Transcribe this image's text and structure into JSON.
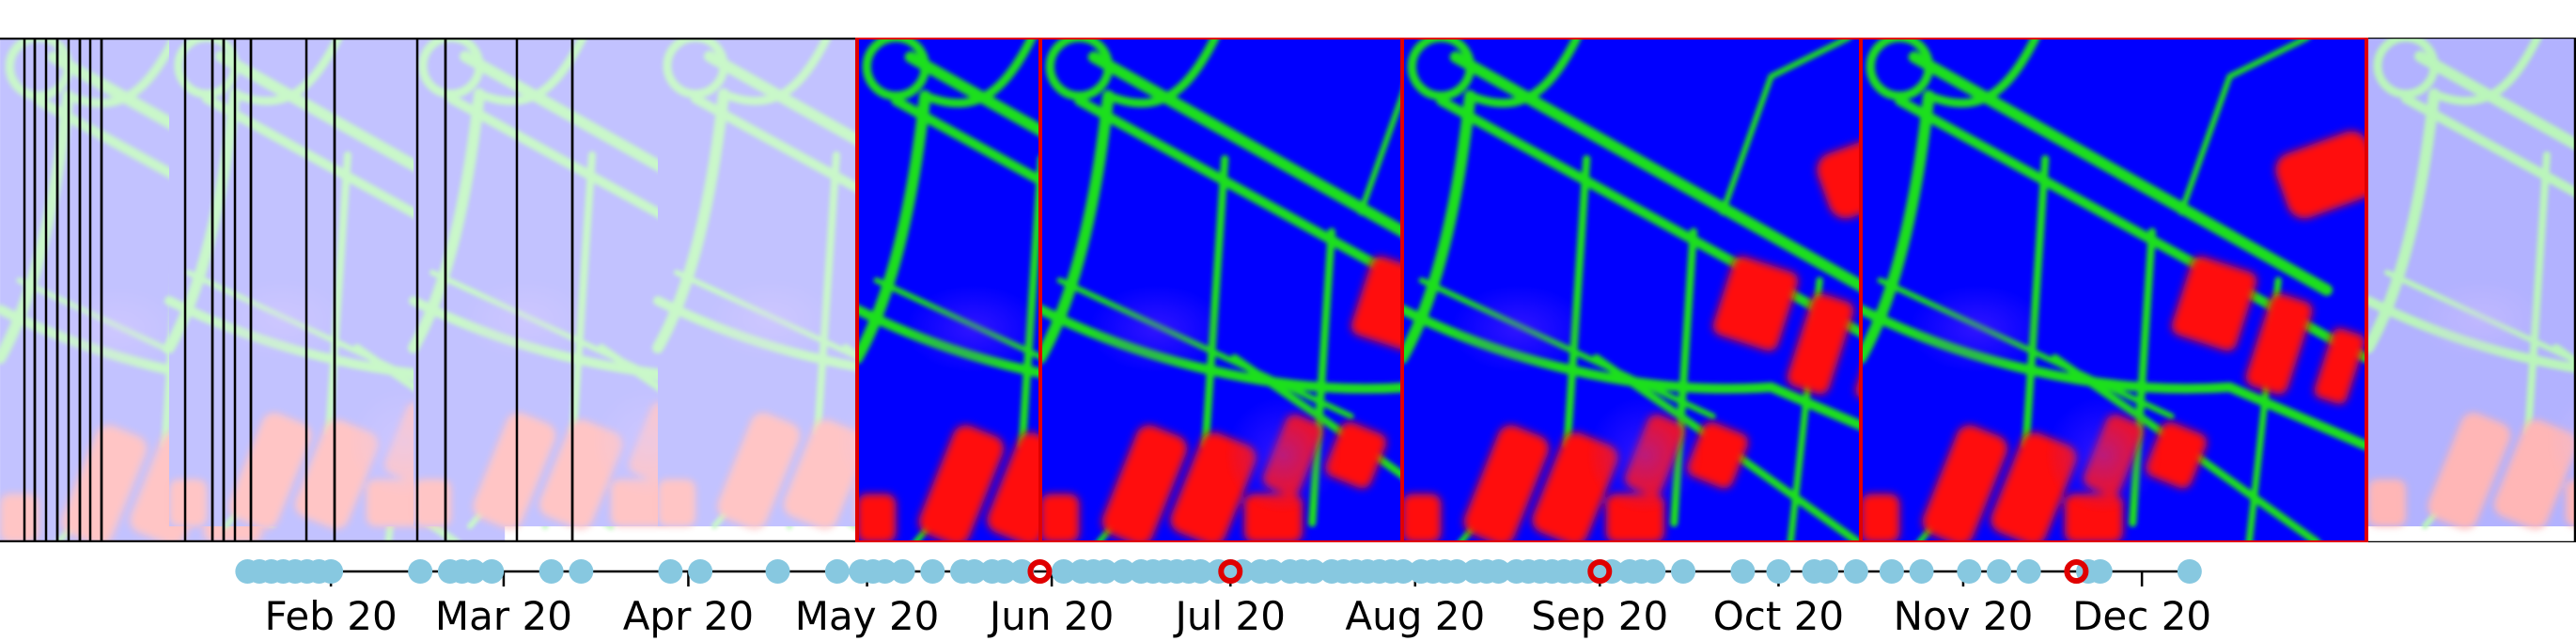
{
  "chart_data": {
    "type": "scatter",
    "title": "",
    "xlabel": "",
    "ylabel": "",
    "x_axis": {
      "scale": "time",
      "range": [
        "2020-01-14",
        "2021-01-08"
      ],
      "ticks": [
        {
          "date": "2020-02-01",
          "label": "Feb 20"
        },
        {
          "date": "2020-03-01",
          "label": "Mar 20"
        },
        {
          "date": "2020-04-01",
          "label": "Apr 20"
        },
        {
          "date": "2020-05-01",
          "label": "May 20"
        },
        {
          "date": "2020-06-01",
          "label": "Jun 20"
        },
        {
          "date": "2020-07-01",
          "label": "Jul 20"
        },
        {
          "date": "2020-08-01",
          "label": "Aug 20"
        },
        {
          "date": "2020-09-01",
          "label": "Sep 20"
        },
        {
          "date": "2020-10-01",
          "label": "Oct 20"
        },
        {
          "date": "2020-11-01",
          "label": "Nov 20"
        },
        {
          "date": "2020-12-01",
          "label": "Dec 20"
        }
      ]
    },
    "grid": false,
    "series": [
      {
        "marker": "filled-circle",
        "color": "#87c8e0",
        "x": [
          "2020-01-18",
          "2020-01-20",
          "2020-01-22",
          "2020-01-24",
          "2020-01-26",
          "2020-01-28",
          "2020-01-30",
          "2020-02-01",
          "2020-02-16",
          "2020-02-21",
          "2020-02-23",
          "2020-02-25",
          "2020-02-28",
          "2020-03-09",
          "2020-03-14",
          "2020-03-29",
          "2020-04-03",
          "2020-04-16",
          "2020-04-26",
          "2020-04-30",
          "2020-05-02",
          "2020-05-04",
          "2020-05-07",
          "2020-05-12",
          "2020-05-17",
          "2020-05-19",
          "2020-05-22",
          "2020-05-24",
          "2020-05-27",
          "2020-06-03",
          "2020-06-06",
          "2020-06-08",
          "2020-06-10",
          "2020-06-13",
          "2020-06-16",
          "2020-06-18",
          "2020-06-20",
          "2020-06-22",
          "2020-06-24",
          "2020-06-26",
          "2020-06-29",
          "2020-07-01",
          "2020-07-03",
          "2020-07-06",
          "2020-07-08",
          "2020-07-11",
          "2020-07-13",
          "2020-07-15",
          "2020-07-18",
          "2020-07-20",
          "2020-07-22",
          "2020-07-24",
          "2020-07-26",
          "2020-07-28",
          "2020-07-30",
          "2020-08-02",
          "2020-08-04",
          "2020-08-06",
          "2020-08-08",
          "2020-08-11",
          "2020-08-13",
          "2020-08-15",
          "2020-08-18",
          "2020-08-20",
          "2020-08-22",
          "2020-08-24",
          "2020-08-26",
          "2020-08-28",
          "2020-08-30",
          "2020-09-01",
          "2020-09-03",
          "2020-09-06",
          "2020-09-08",
          "2020-09-10",
          "2020-09-15",
          "2020-09-25",
          "2020-10-01",
          "2020-10-07",
          "2020-10-09",
          "2020-10-14",
          "2020-10-20",
          "2020-10-25",
          "2020-11-02",
          "2020-11-07",
          "2020-11-12",
          "2020-11-22",
          "2020-11-24",
          "2020-12-09"
        ]
      },
      {
        "marker": "open-circle",
        "color": "#e00000",
        "x": [
          "2020-05-30",
          "2020-07-01",
          "2020-09-01",
          "2020-11-20"
        ]
      }
    ],
    "image_strip": {
      "frames": 34,
      "highlighted_frames": 4,
      "highlight_color": "#e00000",
      "class_colors": {
        "background": "#0000ff",
        "boundary": "#1fe01f",
        "building": "#ff1010"
      }
    }
  }
}
